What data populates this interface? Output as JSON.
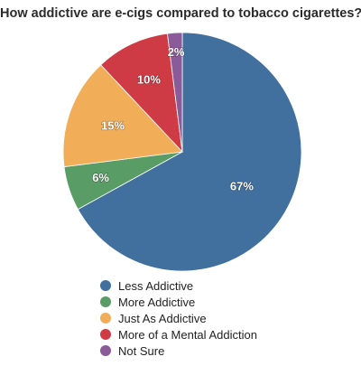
{
  "chart_data": {
    "type": "pie",
    "title": "How addictive are e-cigs compared to tobacco cigarettes?",
    "categories": [
      "Less Addictive",
      "More Addictive",
      "Just As Addictive",
      "More of a Mental Addiction",
      "Not Sure"
    ],
    "values": [
      67,
      6,
      15,
      10,
      2
    ],
    "data_labels": [
      "67%",
      "6%",
      "15%",
      "10%",
      "2%"
    ],
    "colors": [
      "#41709f",
      "#5a9c66",
      "#f1ad57",
      "#cf3b45",
      "#8a5a99"
    ],
    "legend_position": "bottom",
    "start": "top, clockwise"
  }
}
